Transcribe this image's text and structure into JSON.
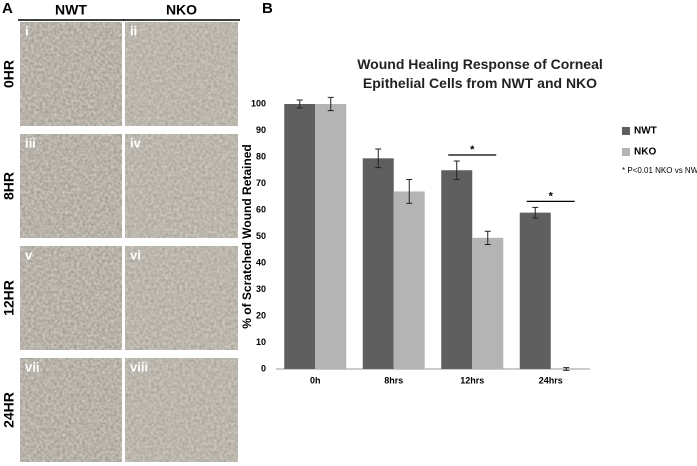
{
  "panel_a": {
    "label": "A",
    "columns": [
      "NWT",
      "NKO"
    ],
    "rows": [
      "0HR",
      "8HR",
      "12HR",
      "24HR"
    ],
    "panels": [
      "i",
      "ii",
      "iii",
      "iv",
      "v",
      "vi",
      "vii",
      "viii"
    ]
  },
  "chart_data": {
    "type": "bar",
    "panel_label": "B",
    "title": "Wound Healing Response of Corneal Epithelial Cells from NWT and NKO",
    "y_label": "% of Scratched Wound Retained",
    "categories": [
      "0h",
      "8hrs",
      "12hrs",
      "24hrs"
    ],
    "series": [
      {
        "name": "NWT",
        "color": "#5f5f5f",
        "values": [
          100,
          79.5,
          75,
          59
        ],
        "errors": [
          1.5,
          3.5,
          3.5,
          2
        ]
      },
      {
        "name": "NKO",
        "color": "#b4b4b4",
        "values": [
          100,
          67,
          49.5,
          0
        ],
        "errors": [
          2.5,
          4.5,
          2.5,
          0.5
        ]
      }
    ],
    "significance": [
      null,
      null,
      "*",
      "*"
    ],
    "footnote": "* P<0.01 NKO vs NWT",
    "ylim": [
      0,
      100
    ],
    "yticks": [
      0,
      10,
      20,
      30,
      40,
      50,
      60,
      70,
      80,
      90,
      100
    ],
    "grid": false
  }
}
